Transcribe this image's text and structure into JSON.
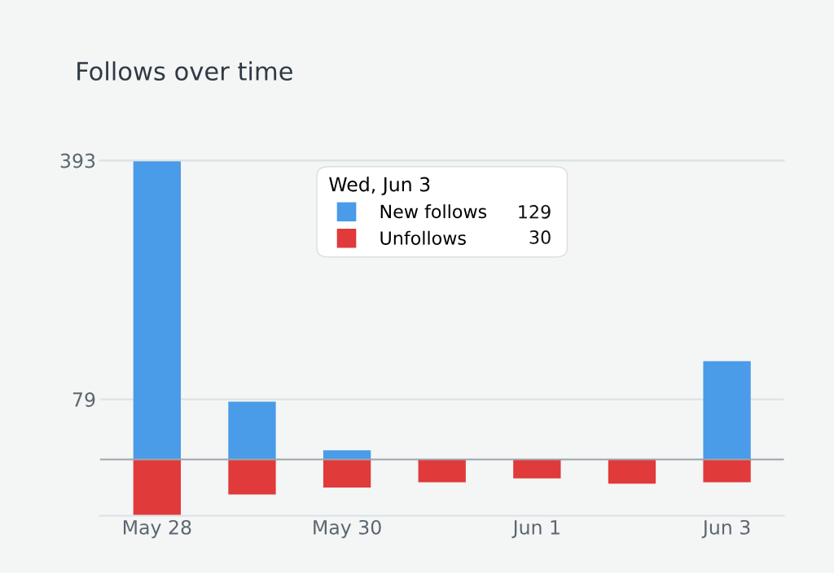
{
  "chart_data": {
    "type": "bar",
    "title": "Follows over time",
    "categories": [
      "May 28",
      null,
      "May 30",
      null,
      "Jun 1",
      null,
      "Jun 3"
    ],
    "series": [
      {
        "name": "New follows",
        "color": "#4a9be8",
        "values": [
          393,
          76,
          12,
          null,
          null,
          null,
          129
        ]
      },
      {
        "name": "Unfollows",
        "color": "#e03a3a",
        "values": [
          -74,
          -46,
          -37,
          -30,
          -25,
          -32,
          -30
        ]
      }
    ],
    "stacked": true,
    "annotations": [
      "129",
      "30"
    ],
    "ylim": [
      -74,
      393
    ],
    "yticks": [
      79,
      393
    ],
    "grid": "y",
    "legend": "top",
    "legend_title": "Wed, Jun 3",
    "ref_lines": [
      {
        "axis": "y",
        "value": 0,
        "color": "#9aa5ae"
      }
    ]
  }
}
